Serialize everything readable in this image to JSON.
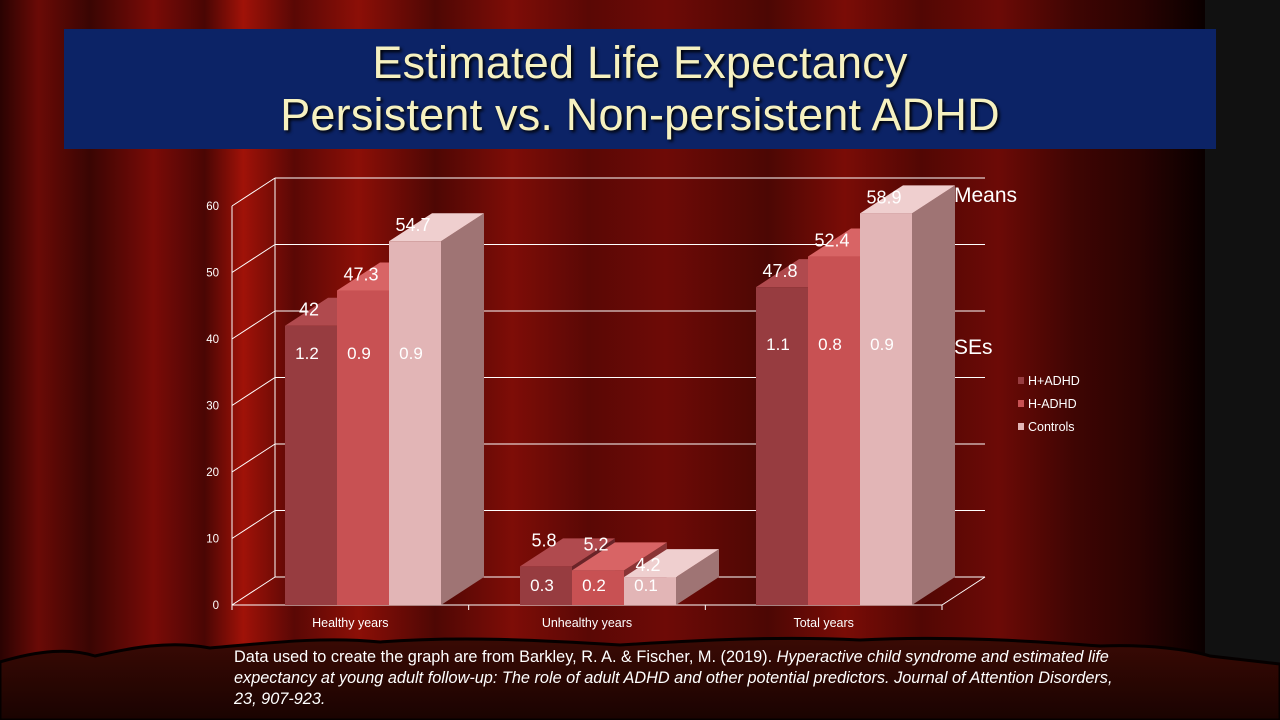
{
  "slide": {
    "title_line1": "Estimated Life Expectancy",
    "title_line2": "Persistent vs. Non-persistent ADHD",
    "means_label": "Means",
    "ses_label": "SEs",
    "citation_prefix": "Data used to create the graph are from Barkley, R. A. & Fischer, M. (2019). ",
    "citation_italic": "Hyperactive child syndrome and estimated life expectancy at young adult follow-up:  The role of adult ADHD and other potential predictors.  Journal of Attention Disorders, 23, 907-923."
  },
  "colors": {
    "title_bg": "#0c2366",
    "title_text": "#f6f1c0",
    "hadhd": "#973c40",
    "hadhd_side": "#6a2428",
    "hadhd_top": "#b04a4e",
    "hadhd_legend": "#c0504d",
    "hminus": "#c85153",
    "hminus_side": "#8a3435",
    "hminus_top": "#d86465",
    "controls": "#e2b5b6",
    "controls_side": "#9f7474",
    "controls_top": "#efcfcf",
    "grid": "#ffffff"
  },
  "chart_data": {
    "type": "bar",
    "categories": [
      "Healthy years",
      "Unhealthy years",
      "Total years"
    ],
    "series": [
      {
        "name": "H+ADHD",
        "values": [
          42,
          5.8,
          47.8
        ],
        "ses": [
          "1.2",
          "0.3",
          "1.1"
        ]
      },
      {
        "name": "H-ADHD",
        "values": [
          47.3,
          5.2,
          52.4
        ],
        "ses": [
          "0.9",
          "0.2",
          "0.8"
        ]
      },
      {
        "name": "Controls",
        "values": [
          54.7,
          4.2,
          58.9
        ],
        "ses": [
          "0.9",
          "0.1",
          "0.9"
        ]
      }
    ],
    "yticks": [
      0,
      10,
      20,
      30,
      40,
      50,
      60
    ],
    "ylim": [
      0,
      60
    ],
    "grid": true,
    "legend": "right"
  }
}
